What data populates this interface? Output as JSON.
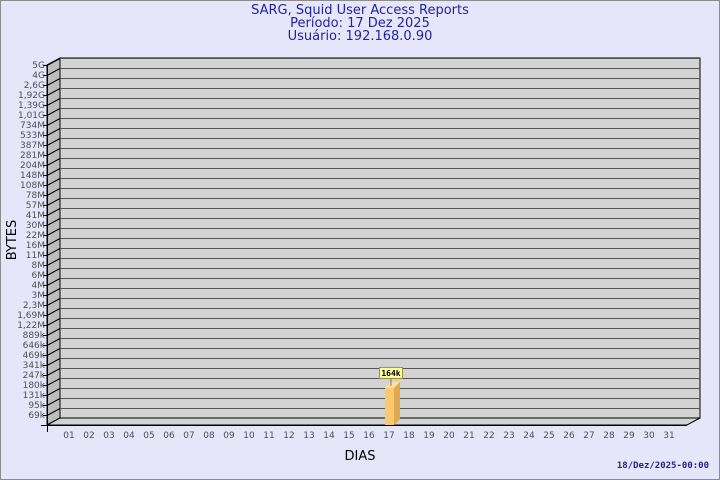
{
  "header": {
    "title": "SARG, Squid User Access Reports",
    "period": "Período: 17 Dez 2025",
    "user": "Usuário: 192.168.0.90"
  },
  "footer": {
    "timestamp": "18/Dez/2025-00:00"
  },
  "colors": {
    "background": "#e6e6fa",
    "plot_back": "#d3d3d3",
    "plot_side": "#bdbdbd",
    "bar": "#ffc86e",
    "bar_side": "#e0a850",
    "label_box": "#ffffa0",
    "title": "#2323a0"
  },
  "chart_data": {
    "type": "bar",
    "title": "SARG, Squid User Access Reports",
    "xlabel": "DIAS",
    "ylabel": "BYTES",
    "y_scale": "log",
    "grid": true,
    "y_ticks": [
      "5G",
      "4G",
      "2,6G",
      "1,92G",
      "1,39G",
      "1,01G",
      "734M",
      "533M",
      "387M",
      "281M",
      "204M",
      "148M",
      "108M",
      "78M",
      "57M",
      "41M",
      "30M",
      "22M",
      "16M",
      "11M",
      "8M",
      "6M",
      "4M",
      "3M",
      "2,3M",
      "1,69M",
      "1,22M",
      "889k",
      "646k",
      "469k",
      "341k",
      "247k",
      "180k",
      "131k",
      "95k",
      "69k"
    ],
    "y_tick_values": [
      5000000000.0,
      4000000000.0,
      2600000000.0,
      1920000000.0,
      1390000000.0,
      1010000000.0,
      734000000.0,
      533000000.0,
      387000000.0,
      281000000.0,
      204000000.0,
      148000000.0,
      108000000.0,
      78000000.0,
      57000000.0,
      41000000.0,
      30000000.0,
      22000000.0,
      16000000.0,
      11000000.0,
      8000000.0,
      6000000.0,
      4000000.0,
      3000000.0,
      2300000.0,
      1690000.0,
      1220000.0,
      889000.0,
      646000.0,
      469000.0,
      341000.0,
      247000.0,
      180000.0,
      131000.0,
      95000.0,
      69000.0
    ],
    "categories": [
      "01",
      "02",
      "03",
      "04",
      "05",
      "06",
      "07",
      "08",
      "09",
      "10",
      "11",
      "12",
      "13",
      "14",
      "15",
      "16",
      "17",
      "18",
      "19",
      "20",
      "21",
      "22",
      "23",
      "24",
      "25",
      "26",
      "27",
      "28",
      "29",
      "30",
      "31"
    ],
    "bars": [
      {
        "category": "17",
        "value": 164000,
        "label": "164k"
      }
    ]
  }
}
